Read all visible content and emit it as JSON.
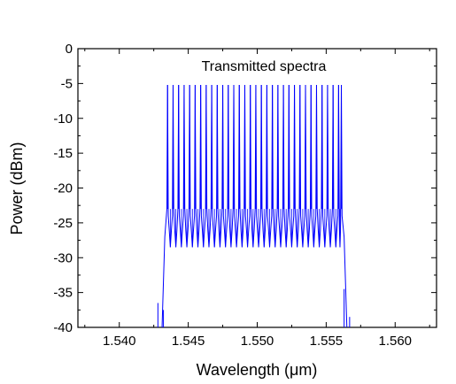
{
  "chart_data": {
    "type": "line",
    "title": "",
    "xlabel": "Wavelength (μm)",
    "ylabel": "Power (dBm)",
    "xlim": [
      1.537,
      1.563
    ],
    "ylim": [
      -40,
      0
    ],
    "x_ticks": [
      {
        "value": 1.54,
        "label": "1.540"
      },
      {
        "value": 1.545,
        "label": "1.545"
      },
      {
        "value": 1.55,
        "label": "1.550"
      },
      {
        "value": 1.555,
        "label": "1.555"
      },
      {
        "value": 1.56,
        "label": "1.560"
      }
    ],
    "y_ticks": [
      {
        "value": 0,
        "label": "0"
      },
      {
        "value": -5,
        "label": "-5"
      },
      {
        "value": -10,
        "label": "-10"
      },
      {
        "value": -15,
        "label": "-15"
      },
      {
        "value": -20,
        "label": "-20"
      },
      {
        "value": -25,
        "label": "-25"
      },
      {
        "value": -30,
        "label": "-30"
      },
      {
        "value": -35,
        "label": "-35"
      },
      {
        "value": -40,
        "label": "-40"
      }
    ],
    "annotation": "Transmitted spectra",
    "grid": false,
    "line_color": "#0000ff",
    "peak_level": -5.2,
    "peak_wavelengths": [
      1.5435,
      1.5439,
      1.5443,
      1.5447,
      1.5451,
      1.5455,
      1.5459,
      1.5463,
      1.5467,
      1.5471,
      1.5475,
      1.5479,
      1.5483,
      1.5487,
      1.5491,
      1.5495,
      1.5499,
      1.5503,
      1.5507,
      1.5511,
      1.5515,
      1.5519,
      1.5523,
      1.5527,
      1.5531,
      1.5535,
      1.5539,
      1.5543,
      1.5547,
      1.5551,
      1.5555,
      1.5559,
      1.5561
    ],
    "valley_levels": [
      -26,
      -28.5
    ],
    "shoulder_levels": [
      -23,
      -24
    ],
    "band_edges": [
      1.5433,
      1.5563
    ],
    "edge_floor_segments": [
      {
        "x": 1.5428,
        "y_top": -36.5
      },
      {
        "x": 1.5432,
        "y_top": -37.5
      },
      {
        "x": 1.5563,
        "y_top": -34.5
      },
      {
        "x": 1.5567,
        "y_top": -38.5
      }
    ]
  }
}
